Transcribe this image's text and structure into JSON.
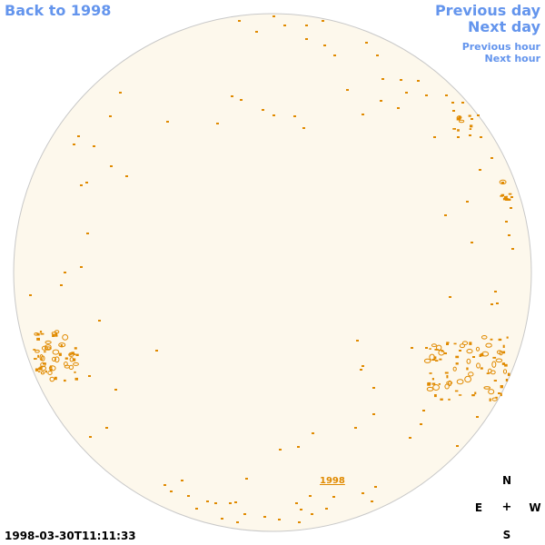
{
  "nav": {
    "back_label": "Back to 1998",
    "prev_day_label": "Previous day",
    "next_day_label": "Next day",
    "prev_hour_label": "Previous hour",
    "next_hour_label": "Next hour"
  },
  "timestamp": "1998-03-30T11:11:33",
  "compass": {
    "north": "N",
    "south": "S",
    "east": "E",
    "west": "W",
    "center": "+"
  },
  "region_label": "1998",
  "colors": {
    "disk_fill": "#fdf8ec",
    "disk_stroke": "#c8c8c8",
    "feature": "#e08a00",
    "link": "#6495ed"
  }
}
